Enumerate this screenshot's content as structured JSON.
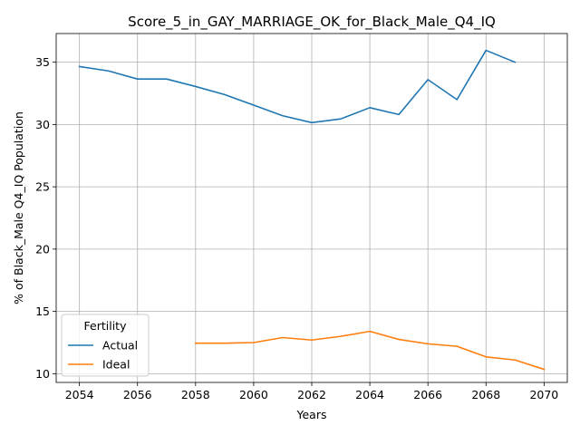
{
  "chart_data": {
    "type": "line",
    "title": "Score_5_in_GAY_MARRIAGE_OK_for_Black_Male_Q4_IQ",
    "xlabel": "Years",
    "ylabel": "% of Black_Male Q4_IQ Population",
    "xlim": [
      2053.2,
      2070.8
    ],
    "ylim": [
      9.3,
      37.3
    ],
    "xticks": [
      2054,
      2056,
      2058,
      2060,
      2062,
      2064,
      2066,
      2068,
      2070
    ],
    "yticks": [
      10,
      15,
      20,
      25,
      30,
      35
    ],
    "grid": true,
    "legend": {
      "title": "Fertility",
      "placement": "lower-left"
    },
    "series": [
      {
        "name": "Actual",
        "color": "#1f77b4",
        "x": [
          2054,
          2055,
          2056,
          2057,
          2058,
          2059,
          2060,
          2061,
          2062,
          2063,
          2064,
          2065,
          2066,
          2067,
          2068,
          2069
        ],
        "y": [
          34.65,
          34.3,
          33.65,
          33.65,
          33.05,
          32.4,
          31.55,
          30.7,
          30.15,
          30.45,
          31.35,
          30.8,
          33.6,
          32.0,
          35.95,
          35.0
        ]
      },
      {
        "name": "Ideal",
        "color": "#ff7f0e",
        "x": [
          2058,
          2059,
          2060,
          2061,
          2062,
          2063,
          2064,
          2065,
          2066,
          2067,
          2068,
          2069,
          2070
        ],
        "y": [
          12.45,
          12.45,
          12.5,
          12.9,
          12.7,
          13.0,
          13.4,
          12.75,
          12.4,
          12.2,
          11.35,
          11.1,
          10.35
        ]
      }
    ]
  }
}
